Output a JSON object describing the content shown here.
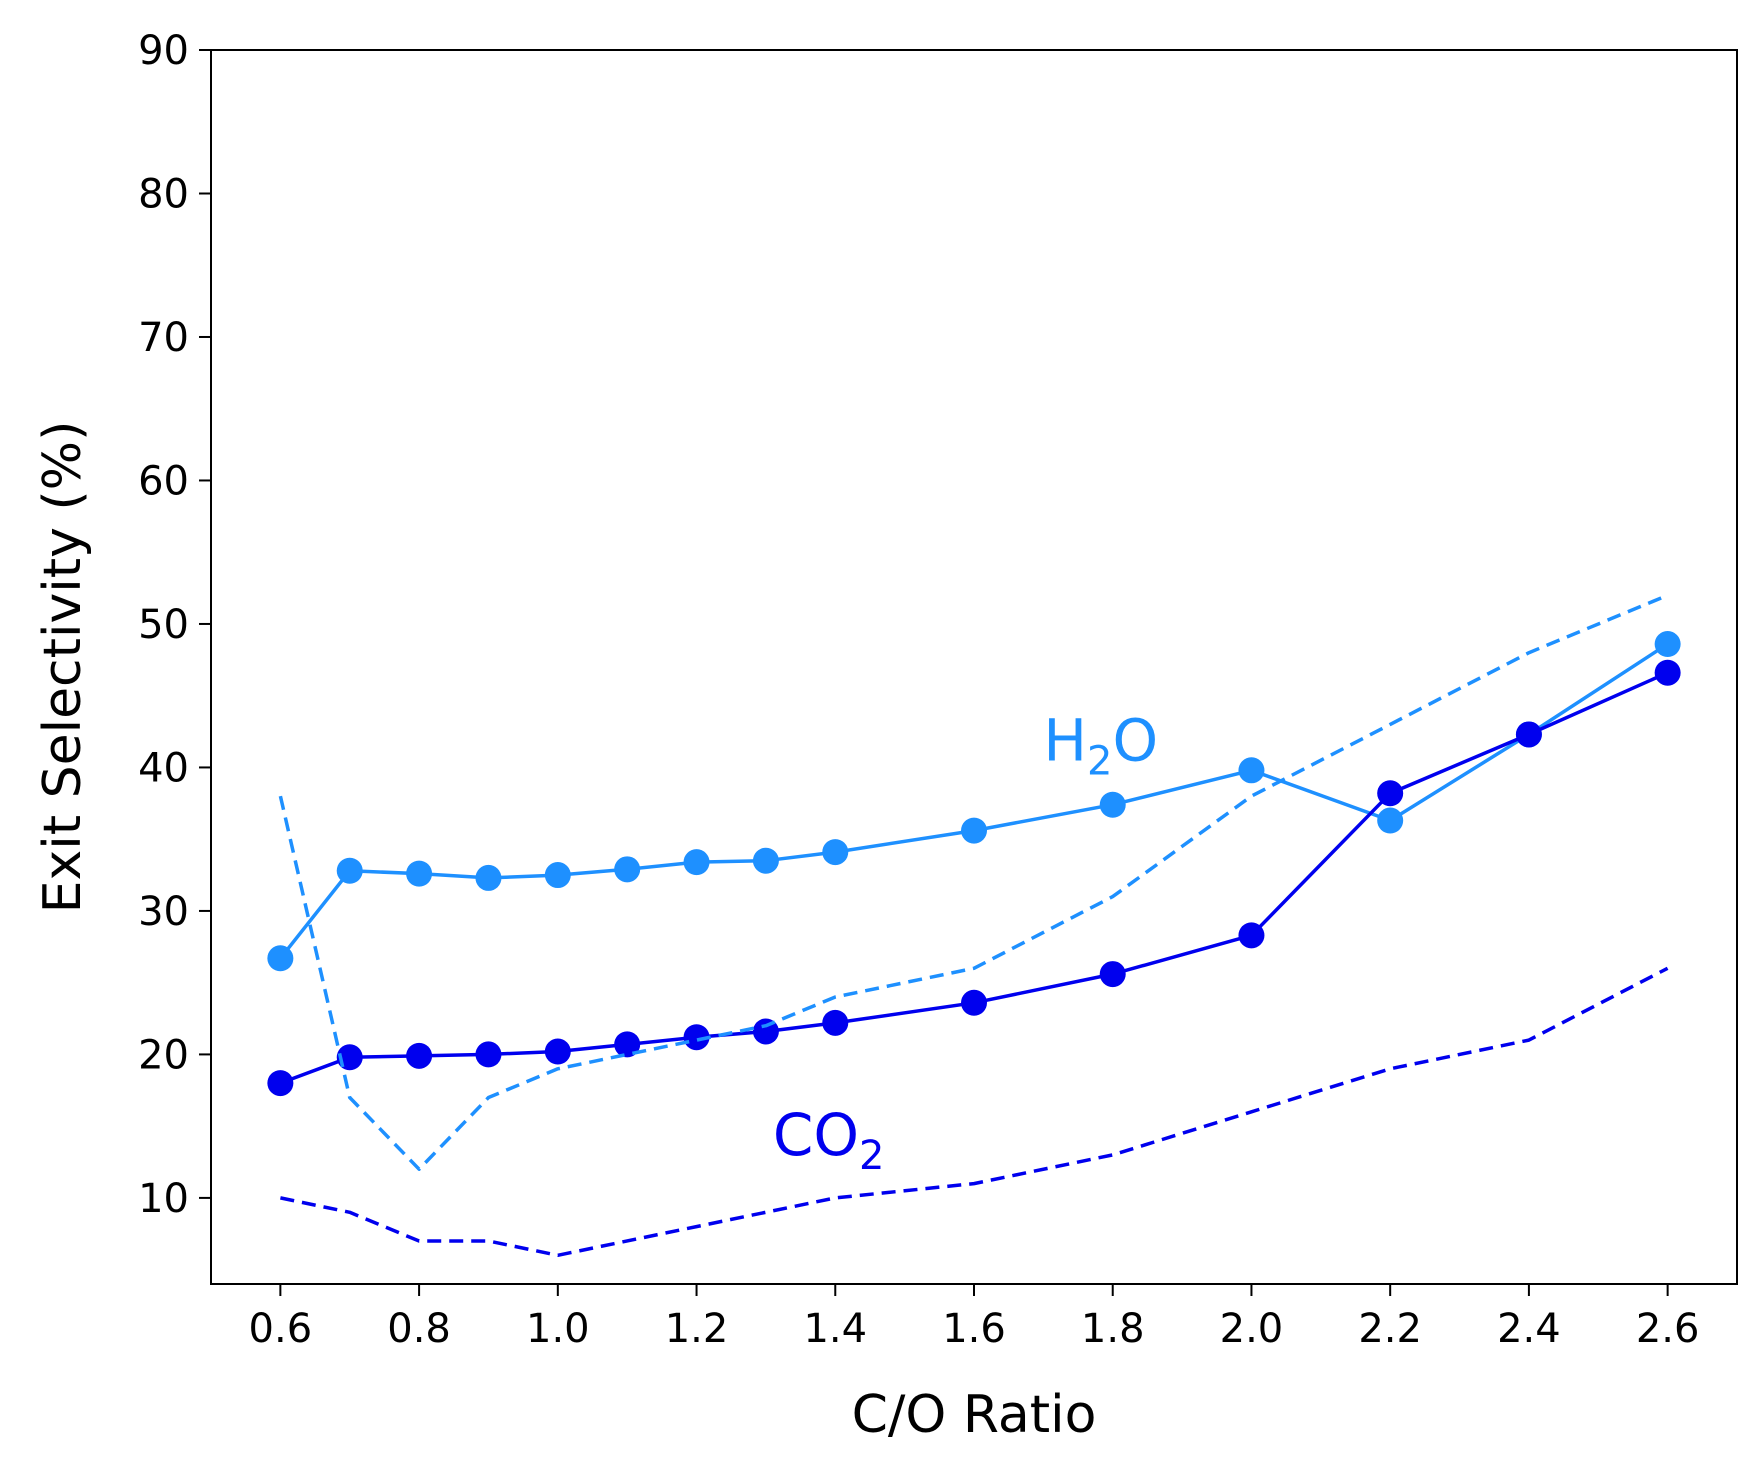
{
  "chart_data": {
    "type": "line",
    "title": "",
    "xlabel": "C/O Ratio",
    "ylabel": "Exit Selectivity (%)",
    "xlim": [
      0.5,
      2.7
    ],
    "ylim": [
      4,
      90
    ],
    "xticks": [
      "0.6",
      "0.8",
      "1.0",
      "1.2",
      "1.4",
      "1.6",
      "1.8",
      "2.0",
      "2.2",
      "2.4",
      "2.6"
    ],
    "yticks": [
      "10",
      "20",
      "30",
      "40",
      "50",
      "60",
      "70",
      "80",
      "90"
    ],
    "grid": false,
    "colors": {
      "h2o": "#1e90ff",
      "co2": "#0000ee"
    },
    "series": [
      {
        "key": "h2o-measured",
        "style": "solid-marker",
        "color": "#1e90ff",
        "x": [
          0.6,
          0.7,
          0.8,
          0.9,
          1.0,
          1.1,
          1.2,
          1.3,
          1.4,
          1.6,
          1.8,
          2.0,
          2.2,
          2.4,
          2.6
        ],
        "y": [
          26.7,
          32.8,
          32.6,
          32.3,
          32.5,
          32.9,
          33.4,
          33.5,
          34.1,
          35.6,
          37.4,
          39.8,
          36.3,
          42.3,
          48.6
        ]
      },
      {
        "key": "co2-measured",
        "style": "solid-marker",
        "color": "#0000ee",
        "x": [
          0.6,
          0.7,
          0.8,
          0.9,
          1.0,
          1.1,
          1.2,
          1.3,
          1.4,
          1.6,
          1.8,
          2.0,
          2.2,
          2.4,
          2.6
        ],
        "y": [
          18.0,
          19.8,
          19.9,
          20.0,
          20.2,
          20.7,
          21.2,
          21.6,
          22.2,
          23.6,
          25.6,
          28.3,
          38.2,
          42.3,
          46.6
        ]
      },
      {
        "key": "h2o-model",
        "style": "dashed",
        "color": "#1e90ff",
        "x": [
          0.6,
          0.7,
          0.8,
          0.9,
          1.0,
          1.2,
          1.3,
          1.4,
          1.6,
          1.8,
          2.0,
          2.2,
          2.4,
          2.6
        ],
        "y": [
          38,
          17,
          12,
          17,
          19,
          21,
          22,
          24,
          26,
          31,
          38,
          43,
          48,
          52
        ]
      },
      {
        "key": "co2-model",
        "style": "dashed",
        "color": "#0000ee",
        "x": [
          0.6,
          0.7,
          0.8,
          0.9,
          1.0,
          1.2,
          1.4,
          1.6,
          1.8,
          2.0,
          2.2,
          2.4,
          2.6
        ],
        "y": [
          10,
          9,
          7,
          7,
          6,
          8,
          10,
          11,
          13,
          16,
          19,
          21,
          26
        ]
      }
    ],
    "annotations": [
      {
        "key": "h2o",
        "base": "H",
        "sub": "2",
        "tail": "O",
        "x": 1.7,
        "y": 40.5,
        "color": "#1e90ff"
      },
      {
        "key": "co2",
        "base": "CO",
        "sub": "2",
        "tail": "",
        "x": 1.31,
        "y": 13,
        "color": "#0000ee"
      }
    ]
  }
}
